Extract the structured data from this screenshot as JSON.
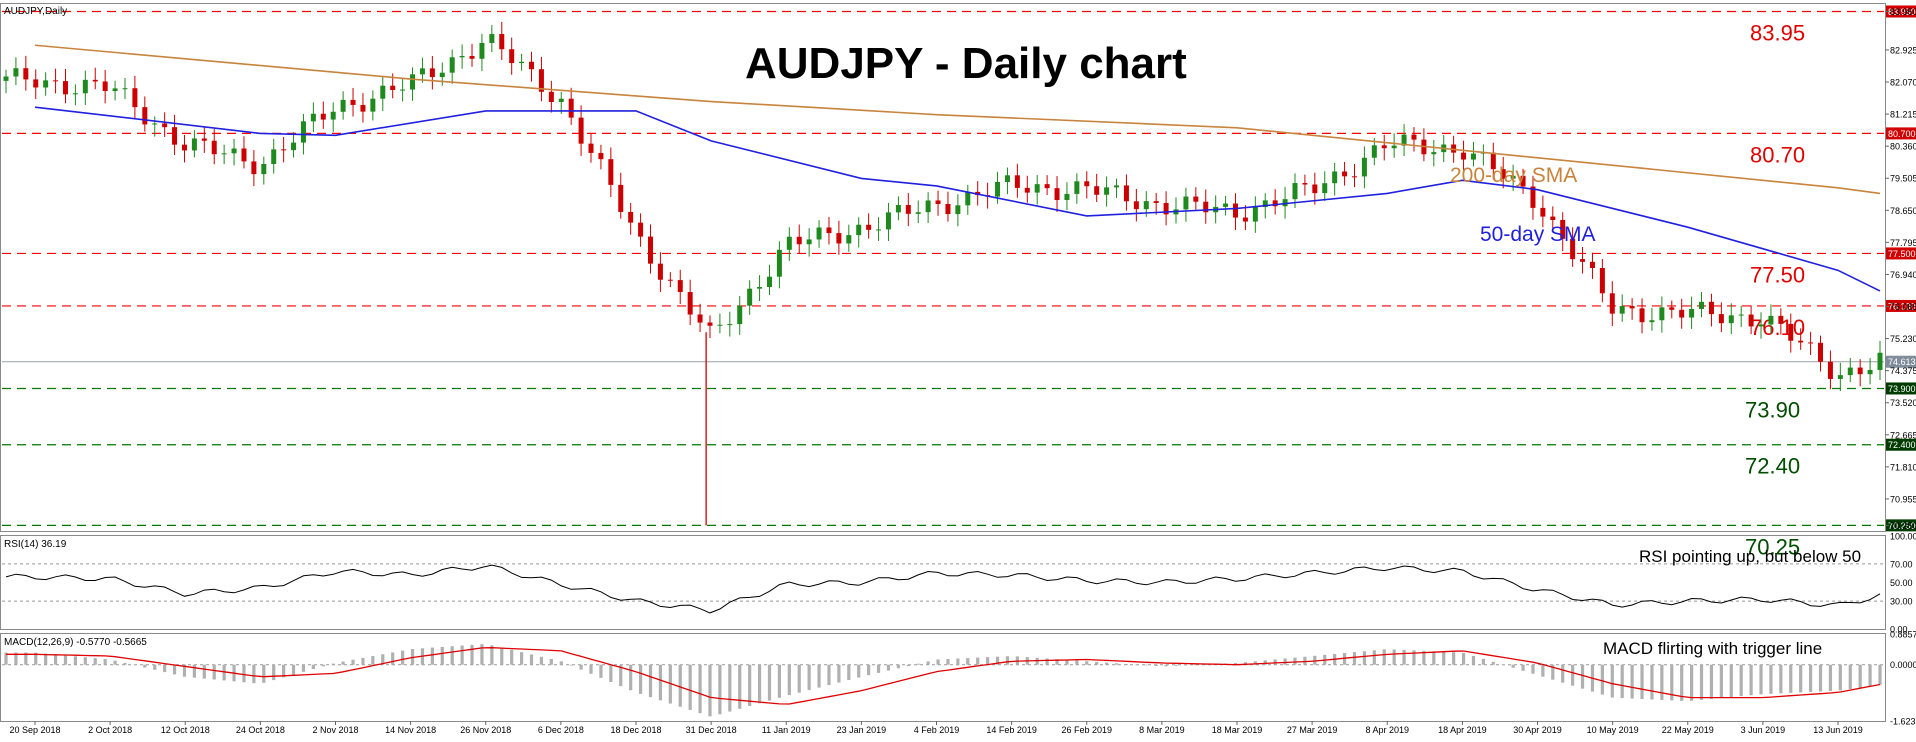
{
  "header": {
    "symbol_label": "AUDJPY,Daily",
    "title": "AUDJPY - Daily chart"
  },
  "annotations": {
    "sma200_label": "200-day SMA",
    "sma50_label": "50-day SMA",
    "rsi_note": "RSI pointing up, but below 50",
    "macd_note": "MACD flirting with trigger line"
  },
  "colors": {
    "bull_candle": "#1e8a1e",
    "bear_candle": "#cc0000",
    "resistance_line": "#ff0000",
    "support_line": "#007a00",
    "sma200": "#c8843c",
    "sma50": "#2020e0",
    "rsi_line": "#000000",
    "macd_signal": "#e00000",
    "macd_hist": "#b0b0b0"
  },
  "chart_data": [
    {
      "type": "candlestick",
      "title": "AUDJPY - Daily chart",
      "timeframe": "Daily",
      "ylim": [
        70.1,
        84.15
      ],
      "x_dates": [
        "20 Sep 2018",
        "2 Oct 2018",
        "12 Oct 2018",
        "24 Oct 2018",
        "2 Nov 2018",
        "14 Nov 2018",
        "26 Nov 2018",
        "6 Dec 2018",
        "18 Dec 2018",
        "31 Dec 2018",
        "11 Jan 2019",
        "23 Jan 2019",
        "4 Feb 2019",
        "14 Feb 2019",
        "26 Feb 2019",
        "8 Mar 2019",
        "18 Mar 2019",
        "27 Mar 2019",
        "8 Apr 2019",
        "18 Apr 2019",
        "30 Apr 2019",
        "10 May 2019",
        "22 May 2019",
        "3 Jun 2019",
        "13 Jun 2019"
      ],
      "y_ticks": [
        "83.950",
        "82.925",
        "82.070",
        "81.215",
        "80.360",
        "79.505",
        "78.650",
        "77.795",
        "76.940",
        "76.085",
        "75.230",
        "74.375",
        "73.520",
        "72.665",
        "71.810",
        "70.955",
        "70.250"
      ],
      "last_price": "74.613",
      "close_trace": {
        "dates": [
          "20 Sep 2018",
          "2 Oct 2018",
          "12 Oct 2018",
          "24 Oct 2018",
          "2 Nov 2018",
          "14 Nov 2018",
          "26 Nov 2018",
          "6 Dec 2018",
          "18 Dec 2018",
          "31 Dec 2018",
          "11 Jan 2019",
          "23 Jan 2019",
          "4 Feb 2019",
          "14 Feb 2019",
          "26 Feb 2019",
          "8 Mar 2019",
          "18 Mar 2019",
          "27 Mar 2019",
          "8 Apr 2019",
          "18 Apr 2019",
          "30 Apr 2019",
          "10 May 2019",
          "22 May 2019",
          "3 Jun 2019",
          "13 Jun 2019",
          "21 Jun 2019"
        ],
        "values": [
          82.1,
          81.9,
          80.4,
          79.9,
          81.4,
          82.0,
          83.2,
          81.6,
          78.0,
          75.2,
          77.7,
          78.2,
          78.8,
          79.3,
          79.2,
          78.8,
          78.6,
          79.2,
          80.4,
          80.3,
          78.9,
          76.0,
          75.9,
          75.8,
          74.3,
          74.6
        ]
      },
      "series": [
        {
          "name": "200-day SMA",
          "dates": [
            "20 Sep 2018",
            "14 Nov 2018",
            "18 Dec 2018",
            "31 Dec 2018",
            "4 Feb 2019",
            "18 Mar 2019",
            "18 Apr 2019",
            "13 Jun 2019",
            "21 Jun 2019"
          ],
          "values": [
            83.05,
            82.15,
            81.7,
            81.55,
            81.2,
            80.85,
            80.25,
            79.25,
            79.1
          ]
        },
        {
          "name": "50-day SMA",
          "dates": [
            "20 Sep 2018",
            "24 Oct 2018",
            "2 Nov 2018",
            "26 Nov 2018",
            "18 Dec 2018",
            "31 Dec 2018",
            "23 Jan 2019",
            "4 Feb 2019",
            "26 Feb 2019",
            "18 Mar 2019",
            "8 Apr 2019",
            "18 Apr 2019",
            "30 Apr 2019",
            "22 May 2019",
            "13 Jun 2019",
            "21 Jun 2019"
          ],
          "values": [
            81.4,
            80.7,
            80.65,
            81.3,
            81.3,
            80.5,
            79.5,
            79.3,
            78.5,
            78.7,
            79.1,
            79.45,
            79.2,
            78.2,
            77.05,
            76.5
          ]
        }
      ],
      "horizontal_levels": [
        {
          "value": 83.95,
          "label": "83.95",
          "tag": "83.950",
          "kind": "resistance"
        },
        {
          "value": 80.7,
          "label": "80.70",
          "tag": "80.700",
          "kind": "resistance"
        },
        {
          "value": 77.5,
          "label": "77.50",
          "tag": "77.500",
          "kind": "resistance"
        },
        {
          "value": 76.1,
          "label": "76.10",
          "tag": "76.100",
          "kind": "resistance"
        },
        {
          "value": 73.9,
          "label": "73.90",
          "tag": "73.900",
          "kind": "support"
        },
        {
          "value": 72.4,
          "label": "72.40",
          "tag": "72.400",
          "kind": "support"
        },
        {
          "value": 70.25,
          "label": "70.25",
          "tag": "70.250",
          "kind": "support"
        }
      ],
      "grid": false
    },
    {
      "type": "line",
      "title": "RSI(14) 36.19",
      "ylim": [
        0,
        100
      ],
      "y_ticks": [
        "100.00",
        "70.00",
        "50.00",
        "30.00",
        "0.00"
      ],
      "reference_lines": [
        70,
        30
      ],
      "series": [
        {
          "name": "RSI(14)",
          "dates": [
            "20 Sep 2018",
            "2 Oct 2018",
            "12 Oct 2018",
            "24 Oct 2018",
            "2 Nov 2018",
            "14 Nov 2018",
            "26 Nov 2018",
            "6 Dec 2018",
            "18 Dec 2018",
            "31 Dec 2018",
            "11 Jan 2019",
            "23 Jan 2019",
            "4 Feb 2019",
            "14 Feb 2019",
            "26 Feb 2019",
            "8 Mar 2019",
            "18 Mar 2019",
            "27 Mar 2019",
            "8 Apr 2019",
            "18 Apr 2019",
            "30 Apr 2019",
            "10 May 2019",
            "22 May 2019",
            "3 Jun 2019",
            "13 Jun 2019",
            "21 Jun 2019"
          ],
          "values": [
            56,
            54,
            38,
            44,
            62,
            58,
            68,
            48,
            30,
            20,
            48,
            50,
            60,
            58,
            52,
            50,
            54,
            60,
            66,
            62,
            42,
            26,
            30,
            32,
            25,
            36
          ]
        }
      ]
    },
    {
      "type": "bar",
      "title": "MACD(12,26,9) -0.5770 -0.5665",
      "ylim": [
        -1.6237,
        0.8857
      ],
      "y_ticks": [
        "0.8857",
        "0.0000",
        "-1.6237"
      ],
      "series": [
        {
          "name": "MACD(12,26,9)",
          "dates": [
            "20 Sep 2018",
            "2 Oct 2018",
            "12 Oct 2018",
            "24 Oct 2018",
            "2 Nov 2018",
            "14 Nov 2018",
            "26 Nov 2018",
            "6 Dec 2018",
            "18 Dec 2018",
            "31 Dec 2018",
            "11 Jan 2019",
            "23 Jan 2019",
            "4 Feb 2019",
            "14 Feb 2019",
            "26 Feb 2019",
            "8 Mar 2019",
            "18 Mar 2019",
            "27 Mar 2019",
            "8 Apr 2019",
            "18 Apr 2019",
            "30 Apr 2019",
            "10 May 2019",
            "22 May 2019",
            "3 Jun 2019",
            "13 Jun 2019",
            "21 Jun 2019"
          ],
          "values": [
            0.35,
            0.15,
            -0.35,
            -0.55,
            0.05,
            0.45,
            0.6,
            0.1,
            -0.8,
            -1.5,
            -0.9,
            -0.35,
            0.15,
            0.25,
            0.1,
            -0.05,
            0.05,
            0.25,
            0.45,
            0.35,
            -0.3,
            -0.95,
            -1.05,
            -0.85,
            -0.75,
            -0.58
          ]
        },
        {
          "name": "Signal",
          "dates": [
            "20 Sep 2018",
            "2 Oct 2018",
            "12 Oct 2018",
            "24 Oct 2018",
            "2 Nov 2018",
            "14 Nov 2018",
            "26 Nov 2018",
            "6 Dec 2018",
            "18 Dec 2018",
            "31 Dec 2018",
            "11 Jan 2019",
            "23 Jan 2019",
            "4 Feb 2019",
            "14 Feb 2019",
            "26 Feb 2019",
            "8 Mar 2019",
            "18 Mar 2019",
            "27 Mar 2019",
            "8 Apr 2019",
            "18 Apr 2019",
            "30 Apr 2019",
            "10 May 2019",
            "22 May 2019",
            "3 Jun 2019",
            "13 Jun 2019",
            "21 Jun 2019"
          ],
          "values": [
            0.3,
            0.25,
            -0.05,
            -0.35,
            -0.25,
            0.2,
            0.5,
            0.4,
            -0.2,
            -0.95,
            -1.15,
            -0.75,
            -0.2,
            0.1,
            0.15,
            0.05,
            0.0,
            0.1,
            0.3,
            0.4,
            0.05,
            -0.55,
            -0.95,
            -0.95,
            -0.8,
            -0.57
          ]
        }
      ]
    }
  ]
}
